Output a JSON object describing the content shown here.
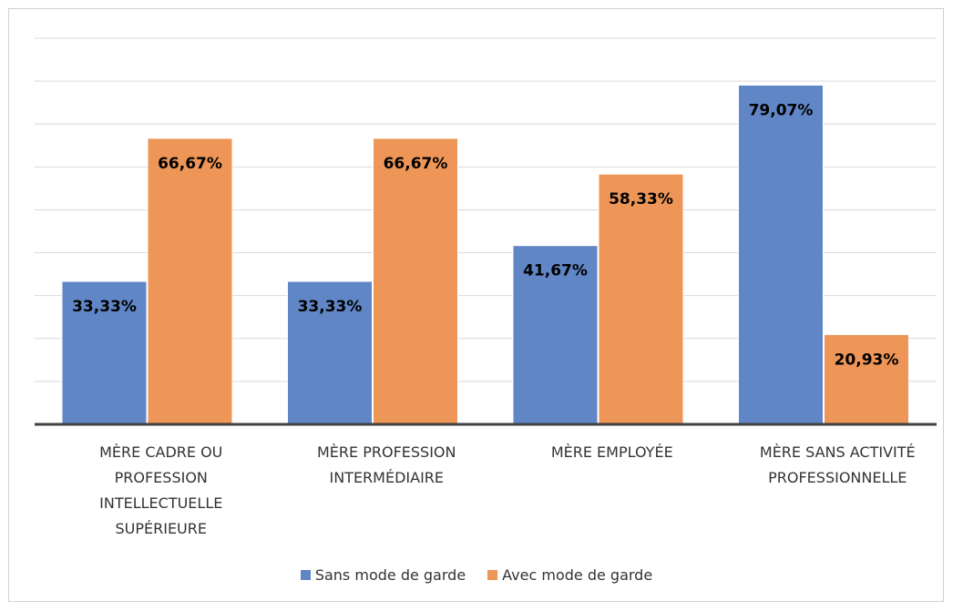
{
  "chart_data": {
    "type": "bar",
    "categories": [
      "MÈRE CADRE OU PROFESSION INTELLECTUELLE SUPÉRIEURE",
      "MÈRE PROFESSION INTERMÉDIAIRE",
      "MÈRE EMPLOYÉE",
      "MÈRE SANS ACTIVITÉ PROFESSIONNELLE"
    ],
    "series": [
      {
        "name": "Sans mode de garde",
        "color": "#6086c6",
        "values": [
          33.33,
          33.33,
          41.67,
          79.07
        ],
        "value_labels": [
          "33,33%",
          "33,33%",
          "41,67%",
          "79,07%"
        ]
      },
      {
        "name": "Avec mode de garde",
        "color": "#ee9558",
        "values": [
          66.67,
          66.67,
          58.33,
          20.93
        ],
        "value_labels": [
          "66,67%",
          "66,67%",
          "58,33%",
          "20,93%"
        ]
      }
    ],
    "ylim": [
      0,
      90
    ],
    "yticks": [
      0,
      10,
      20,
      30,
      40,
      50,
      60,
      70,
      80,
      90
    ],
    "grid": true,
    "legend": "bottom"
  }
}
